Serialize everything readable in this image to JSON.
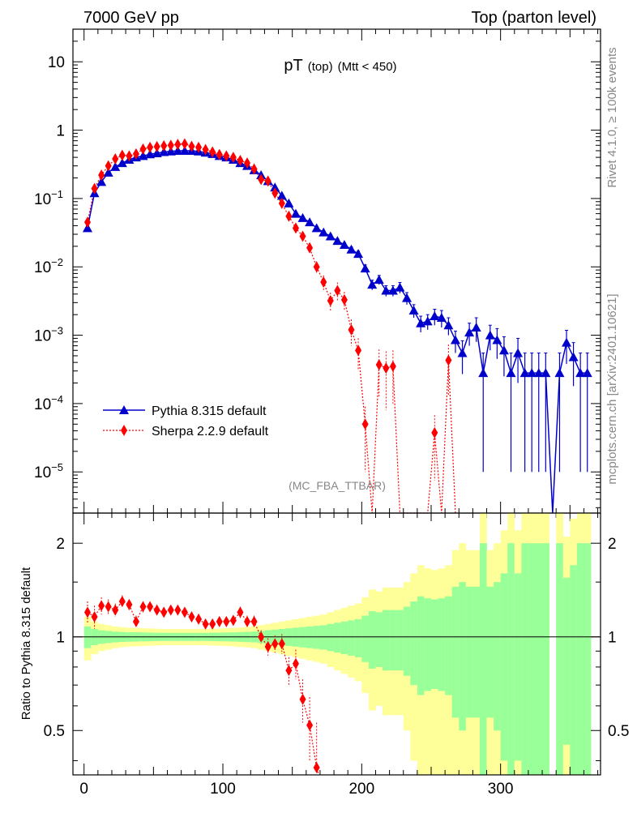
{
  "header": {
    "left": "7000 GeV pp",
    "right": "Top (parton level)"
  },
  "title": {
    "main": "pT",
    "sub1": "(top)",
    "sub2": "(Mtt < 450)"
  },
  "side_labels": {
    "rivet": "Rivet 4.1.0, ≥ 100k events",
    "mcplots": "mcplots.cern.ch [arXiv:2401.10621]"
  },
  "analysis_tag": "(MC_FBA_TTBAR)",
  "legend": {
    "pythia": "Pythia 8.315 default",
    "sherpa": "Sherpa 2.2.9 default"
  },
  "ratio_ylabel": "Ratio to Pythia 8.315 default",
  "colors": {
    "pythia": "#0000cc",
    "sherpa": "#ff0000",
    "band_inner": "#99ff99",
    "band_outer": "#ffff99"
  },
  "chart_data": {
    "type": "line",
    "xlim": [
      -8,
      372
    ],
    "main": {
      "yscale": "log",
      "ylim": [
        2.5e-06,
        30
      ],
      "yticks": [
        {
          "v": 10,
          "label": "10"
        },
        {
          "v": 1,
          "label": "1"
        },
        {
          "v": 0.1,
          "label": "10",
          "exp": "−1"
        },
        {
          "v": 0.01,
          "label": "10",
          "exp": "−2"
        },
        {
          "v": 0.001,
          "label": "10",
          "exp": "−3"
        },
        {
          "v": 0.0001,
          "label": "10",
          "exp": "−4"
        },
        {
          "v": 1e-05,
          "label": "10",
          "exp": "−5"
        }
      ]
    },
    "ratio": {
      "yscale": "log",
      "ylim": [
        0.36,
        2.5
      ],
      "yticks": [
        {
          "v": 2,
          "label": "2"
        },
        {
          "v": 1,
          "label": "1"
        },
        {
          "v": 0.5,
          "label": "0.5"
        }
      ]
    },
    "xticks": [
      0,
      100,
      200,
      300
    ],
    "series": [
      {
        "name": "Pythia 8.315 default",
        "x": [
          2.5,
          7.5,
          12.5,
          17.5,
          22.5,
          27.5,
          32.5,
          37.5,
          42.5,
          47.5,
          52.5,
          57.5,
          62.5,
          67.5,
          72.5,
          77.5,
          82.5,
          87.5,
          92.5,
          97.5,
          102.5,
          107.5,
          112.5,
          117.5,
          122.5,
          127.5,
          132.5,
          137.5,
          142.5,
          147.5,
          152.5,
          157.5,
          162.5,
          167.5,
          172.5,
          177.5,
          182.5,
          187.5,
          192.5,
          197.5,
          202.5,
          207.5,
          212.5,
          217.5,
          222.5,
          227.5,
          232.5,
          237.5,
          242.5,
          247.5,
          252.5,
          257.5,
          262.5,
          267.5,
          272.5,
          277.5,
          282.5,
          287.5,
          292.5,
          297.5,
          302.5,
          307.5,
          312.5,
          317.5,
          322.5,
          327.5,
          332.5,
          337.5,
          342.5,
          347.5,
          352.5,
          357.5,
          362.5
        ],
        "y": [
          0.037,
          0.12,
          0.175,
          0.24,
          0.29,
          0.33,
          0.37,
          0.4,
          0.42,
          0.445,
          0.46,
          0.48,
          0.49,
          0.5,
          0.5,
          0.5,
          0.49,
          0.47,
          0.45,
          0.42,
          0.4,
          0.37,
          0.33,
          0.3,
          0.26,
          0.22,
          0.18,
          0.145,
          0.11,
          0.085,
          0.06,
          0.052,
          0.045,
          0.037,
          0.032,
          0.028,
          0.024,
          0.021,
          0.018,
          0.0155,
          0.0095,
          0.0055,
          0.0065,
          0.0045,
          0.0045,
          0.005,
          0.0035,
          0.0023,
          0.0015,
          0.0016,
          0.0019,
          0.0018,
          0.0014,
          0.00085,
          0.00055,
          0.0011,
          0.0013,
          0.00028,
          0.001,
          0.00085,
          0.0006,
          0.00028,
          0.00055,
          0.00028,
          0.00028,
          0.00028,
          0.00028,
          1e-07,
          0.00028,
          0.00078,
          0.00048,
          0.00028,
          0.00028
        ],
        "err": [
          0.003,
          0.005,
          0.006,
          0.007,
          0.008,
          0.008,
          0.009,
          0.009,
          0.009,
          0.01,
          0.01,
          0.01,
          0.01,
          0.01,
          0.01,
          0.01,
          0.01,
          0.01,
          0.01,
          0.009,
          0.009,
          0.009,
          0.008,
          0.008,
          0.007,
          0.006,
          0.005,
          0.004,
          0.004,
          0.003,
          0.003,
          0.0025,
          0.0025,
          0.002,
          0.002,
          0.002,
          0.0018,
          0.0016,
          0.0015,
          0.0015,
          0.0012,
          0.0009,
          0.001,
          0.0008,
          0.0008,
          0.0009,
          0.0007,
          0.0005,
          0.0004,
          0.0004,
          0.0005,
          0.0005,
          0.0004,
          0.0003,
          0.00028,
          0.0004,
          0.0005,
          0.00027,
          0.0004,
          0.0004,
          0.00035,
          0.00027,
          0.00035,
          0.00027,
          0.00027,
          0.00027,
          0.00027,
          0,
          0.00027,
          0.0004,
          0.0003,
          0.00027,
          0.00027
        ]
      },
      {
        "name": "Sherpa 2.2.9 default",
        "x": [
          2.5,
          7.5,
          12.5,
          17.5,
          22.5,
          27.5,
          32.5,
          37.5,
          42.5,
          47.5,
          52.5,
          57.5,
          62.5,
          67.5,
          72.5,
          77.5,
          82.5,
          87.5,
          92.5,
          97.5,
          102.5,
          107.5,
          112.5,
          117.5,
          122.5,
          127.5,
          132.5,
          137.5,
          142.5,
          147.5,
          152.5,
          157.5,
          162.5,
          167.5,
          172.5,
          177.5,
          182.5,
          187.5,
          192.5,
          197.5,
          202.5,
          207.5,
          212.5,
          217.5,
          222.5,
          227.5,
          232.5,
          237.5,
          242.5,
          247.5,
          252.5,
          257.5,
          262.5,
          267.5
        ],
        "y": [
          0.045,
          0.14,
          0.22,
          0.3,
          0.38,
          0.43,
          0.42,
          0.45,
          0.53,
          0.56,
          0.575,
          0.59,
          0.6,
          0.62,
          0.63,
          0.58,
          0.56,
          0.52,
          0.48,
          0.44,
          0.42,
          0.4,
          0.36,
          0.33,
          0.27,
          0.19,
          0.18,
          0.12,
          0.085,
          0.055,
          0.037,
          0.028,
          0.019,
          0.01,
          0.006,
          0.0032,
          0.0045,
          0.0033,
          0.0012,
          0.0006,
          5e-05,
          2.5e-06,
          0.00037,
          0.00033,
          0.00035,
          2.5e-06,
          2.5e-06,
          2.5e-06,
          2.5e-06,
          2.5e-06,
          3.75e-05,
          2.5e-06,
          0.00043,
          2.5e-06
        ],
        "err": [
          0.004,
          0.008,
          0.01,
          0.012,
          0.013,
          0.014,
          0.014,
          0.015,
          0.016,
          0.016,
          0.017,
          0.017,
          0.017,
          0.017,
          0.017,
          0.017,
          0.016,
          0.015,
          0.015,
          0.014,
          0.014,
          0.013,
          0.012,
          0.012,
          0.011,
          0.009,
          0.009,
          0.008,
          0.006,
          0.005,
          0.004,
          0.003,
          0.003,
          0.002,
          0.0015,
          0.001,
          0.0014,
          0.001,
          0.0005,
          0.0003,
          4e-05,
          0,
          0.00025,
          0.00025,
          0.00025,
          0,
          0,
          0,
          0,
          0,
          3e-05,
          0,
          0.0003,
          0
        ],
        "ratio": [
          1.2,
          1.16,
          1.26,
          1.25,
          1.22,
          1.3,
          1.27,
          1.12,
          1.25,
          1.25,
          1.22,
          1.2,
          1.22,
          1.22,
          1.2,
          1.16,
          1.14,
          1.1,
          1.1,
          1.12,
          1.12,
          1.13,
          1.2,
          1.12,
          1.12,
          1.0,
          0.93,
          0.95,
          0.95,
          0.78,
          0.82,
          0.63,
          0.52,
          0.38,
          null,
          null,
          null,
          null,
          null,
          null,
          null,
          null,
          null,
          null,
          null,
          null,
          null,
          null,
          null,
          null,
          null,
          null,
          null,
          null
        ],
        "ratio_err": [
          0.1,
          0.1,
          0.08,
          0.07,
          0.06,
          0.06,
          0.05,
          0.05,
          0.05,
          0.04,
          0.04,
          0.04,
          0.04,
          0.04,
          0.04,
          0.04,
          0.04,
          0.04,
          0.04,
          0.04,
          0.04,
          0.04,
          0.05,
          0.05,
          0.05,
          0.05,
          0.06,
          0.06,
          0.07,
          0.08,
          0.09,
          0.1,
          0.12,
          0.15,
          null,
          null,
          null,
          null,
          null,
          null,
          null,
          null,
          null,
          null,
          null,
          null,
          null,
          null,
          null,
          null,
          null,
          null,
          null,
          null
        ]
      }
    ],
    "band": {
      "x_edges": [
        0,
        5,
        10,
        15,
        20,
        25,
        30,
        35,
        40,
        45,
        50,
        55,
        60,
        65,
        70,
        75,
        80,
        85,
        90,
        95,
        100,
        105,
        110,
        115,
        120,
        125,
        130,
        135,
        140,
        145,
        150,
        155,
        160,
        165,
        170,
        175,
        180,
        185,
        190,
        195,
        200,
        205,
        210,
        215,
        220,
        225,
        230,
        235,
        240,
        245,
        250,
        255,
        260,
        265,
        270,
        275,
        280,
        285,
        290,
        295,
        300,
        305,
        310,
        315,
        320,
        325,
        330,
        335,
        340,
        345,
        350,
        355,
        360,
        365
      ],
      "inner_half": [
        0.08,
        0.06,
        0.05,
        0.045,
        0.04,
        0.037,
        0.035,
        0.034,
        0.033,
        0.032,
        0.031,
        0.03,
        0.03,
        0.03,
        0.03,
        0.03,
        0.03,
        0.03,
        0.031,
        0.032,
        0.033,
        0.034,
        0.036,
        0.038,
        0.04,
        0.045,
        0.05,
        0.055,
        0.06,
        0.065,
        0.07,
        0.075,
        0.08,
        0.085,
        0.09,
        0.1,
        0.11,
        0.12,
        0.13,
        0.14,
        0.17,
        0.21,
        0.2,
        0.22,
        0.22,
        0.22,
        0.25,
        0.3,
        0.35,
        0.33,
        0.32,
        0.33,
        0.35,
        0.45,
        0.5,
        0.45,
        0.45,
        1.0,
        0.45,
        0.5,
        0.6,
        1.0,
        0.6,
        1.0,
        1.0,
        1.0,
        1.0,
        null,
        1.0,
        0.55,
        0.7,
        1.0,
        1.0
      ],
      "outer_half": [
        0.16,
        0.12,
        0.1,
        0.09,
        0.08,
        0.074,
        0.07,
        0.068,
        0.066,
        0.064,
        0.062,
        0.06,
        0.06,
        0.06,
        0.06,
        0.06,
        0.06,
        0.06,
        0.062,
        0.064,
        0.066,
        0.068,
        0.072,
        0.076,
        0.08,
        0.09,
        0.1,
        0.11,
        0.12,
        0.13,
        0.14,
        0.15,
        0.16,
        0.17,
        0.18,
        0.2,
        0.22,
        0.24,
        0.26,
        0.28,
        0.34,
        0.42,
        0.4,
        0.44,
        0.44,
        0.44,
        0.5,
        0.6,
        0.7,
        0.66,
        0.64,
        0.66,
        0.7,
        0.9,
        1.0,
        0.9,
        0.9,
        2.0,
        0.9,
        1.0,
        1.2,
        2.0,
        1.2,
        2.0,
        2.0,
        2.0,
        2.0,
        null,
        2.0,
        1.1,
        1.4,
        2.0,
        2.0
      ]
    }
  }
}
